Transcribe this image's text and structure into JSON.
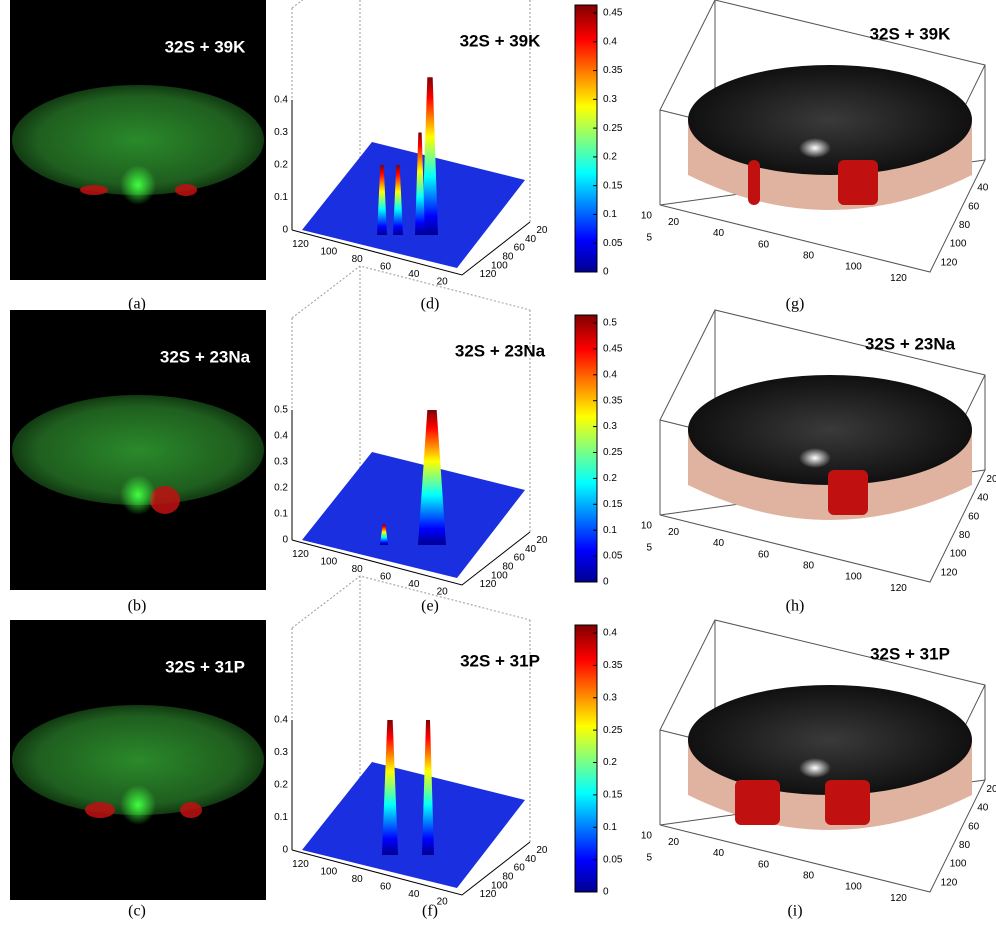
{
  "rows": [
    {
      "image": {
        "title": "32S + 39K",
        "caption": "(a)"
      },
      "surface": {
        "title": "32S + 39K",
        "caption": "(d)",
        "zticks": [
          0,
          0.1,
          0.2,
          0.3,
          0.4
        ],
        "xticks": [
          120,
          100,
          80,
          60,
          40,
          20
        ],
        "yticks": [
          20,
          40,
          60,
          80,
          100,
          120
        ],
        "colorbar_ticks": [
          0,
          0.05,
          0.1,
          0.15,
          0.2,
          0.25,
          0.3,
          0.35,
          0.4,
          0.45
        ]
      },
      "iso": {
        "title": "32S + 39K",
        "caption": "(g)",
        "zticks": [
          5,
          10
        ],
        "xticks": [
          20,
          40,
          60,
          80,
          100,
          120
        ],
        "yticks": [
          40,
          60,
          80,
          100,
          120
        ]
      }
    },
    {
      "image": {
        "title": "32S + 23Na",
        "caption": "(b)"
      },
      "surface": {
        "title": "32S + 23Na",
        "caption": "(e)",
        "zticks": [
          0,
          0.1,
          0.2,
          0.3,
          0.4,
          0.5
        ],
        "xticks": [
          120,
          100,
          80,
          60,
          40,
          20
        ],
        "yticks": [
          20,
          40,
          60,
          80,
          100,
          120
        ],
        "colorbar_ticks": [
          0,
          0.05,
          0.1,
          0.15,
          0.2,
          0.25,
          0.3,
          0.35,
          0.4,
          0.45,
          0.5
        ]
      },
      "iso": {
        "title": "32S + 23Na",
        "caption": "(h)",
        "zticks": [
          5,
          10
        ],
        "xticks": [
          20,
          40,
          60,
          80,
          100,
          120
        ],
        "yticks": [
          20,
          40,
          60,
          80,
          100,
          120
        ]
      }
    },
    {
      "image": {
        "title": "32S + 31P",
        "caption": "(c)"
      },
      "surface": {
        "title": "32S + 31P",
        "caption": "(f)",
        "zticks": [
          0,
          0.1,
          0.2,
          0.3,
          0.4
        ],
        "xticks": [
          120,
          100,
          80,
          60,
          40,
          20
        ],
        "yticks": [
          20,
          40,
          60,
          80,
          100,
          120
        ],
        "colorbar_ticks": [
          0,
          0.05,
          0.1,
          0.15,
          0.2,
          0.25,
          0.3,
          0.35,
          0.4
        ]
      },
      "iso": {
        "title": "32S + 31P",
        "caption": "(i)",
        "zticks": [
          5,
          10
        ],
        "xticks": [
          20,
          40,
          60,
          80,
          100,
          120
        ],
        "yticks": [
          20,
          40,
          60,
          80,
          100,
          120
        ]
      }
    }
  ]
}
